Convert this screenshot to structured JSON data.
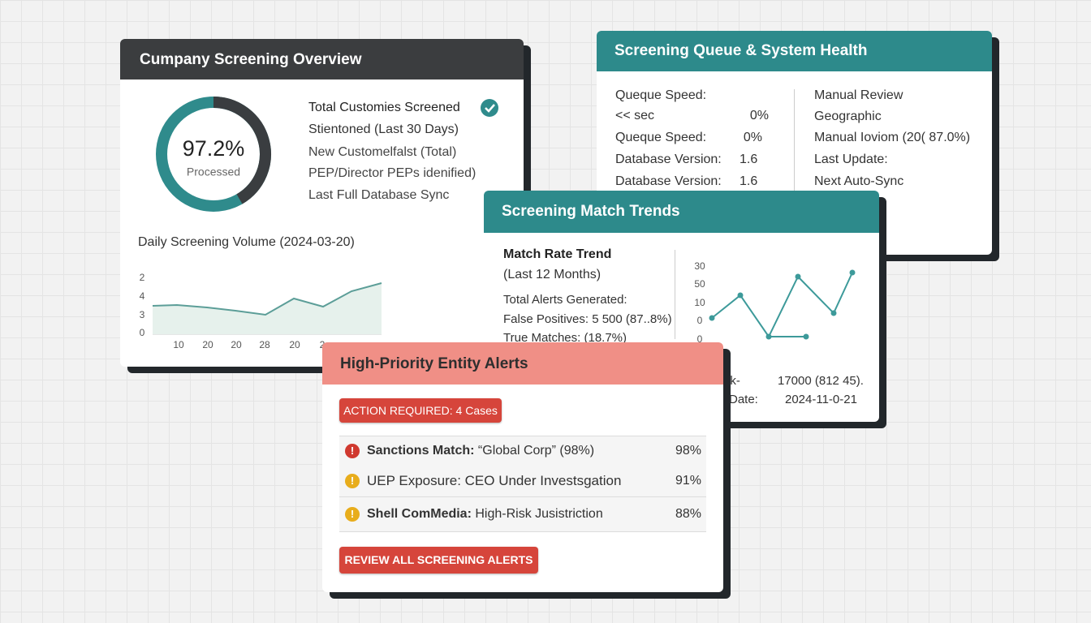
{
  "overview": {
    "title": "Cumpany Screening Overview",
    "donut": {
      "value_label": "97.2%",
      "caption": "Processed"
    },
    "stats": [
      "Total Customies Screened",
      "Stientoned (Last 30 Days)",
      "New Customelfalst (Total)",
      "PEP/Director PEPs idenified)",
      "Last Full Database Sync"
    ],
    "volume_chart": {
      "title": "Daily Screening Volume (2024-03-20)",
      "y_labels": [
        "2",
        "4",
        "3",
        "0"
      ],
      "x_labels": [
        "10",
        "20",
        "20",
        "28",
        "20",
        "2"
      ]
    }
  },
  "queue": {
    "title": "Screening Queue & System Health",
    "left_rows": [
      [
        "Queque Speed:"
      ],
      [
        "<< sec",
        "0%"
      ],
      [
        "Queque Speed:",
        "0%"
      ],
      [
        "Database Version:",
        "1.6"
      ],
      [
        "Database Version:",
        "1.6"
      ]
    ],
    "right_rows": [
      "Manual Review",
      "Geographic",
      "Manual Ioviom (20( 87.0%)",
      "Last Update:",
      "Next Auto-Sync"
    ]
  },
  "trends": {
    "title": "Screening Match Trends",
    "subtitle": "Match Rate Trend",
    "period": "(Last 12 Months)",
    "stats": [
      "Total Alerts Generated:",
      "False Positives: 5 500 (87..8%)",
      "True Matches: (18.7%)"
    ],
    "y_labels": [
      "30",
      "50",
      "10",
      "0",
      "0"
    ],
    "footer_rows": [
      [
        "lk-",
        "17000 (812 45)."
      ],
      [
        "Date:",
        "2024-11-0-21"
      ]
    ]
  },
  "alerts": {
    "title": "High-Priority Entity Alerts",
    "badge": "ACTION REQUIRED: 4 Cases",
    "items": [
      {
        "lead": "Sanctions Match:",
        "text": " “Global Corp” (98%)",
        "score": "98%",
        "icon_color": "#d0392f"
      },
      {
        "text": "UEP Exposure: CEO Under Investsgation",
        "score": "91%",
        "icon_color": "#e8ad1c"
      },
      {
        "lead": "Shell ComMedia:",
        "text": " High-Risk Jusistriction",
        "score": "88%",
        "icon_color": "#e8ad1c"
      }
    ],
    "button": "REVIEW ALL SCREENING ALERTS"
  }
}
